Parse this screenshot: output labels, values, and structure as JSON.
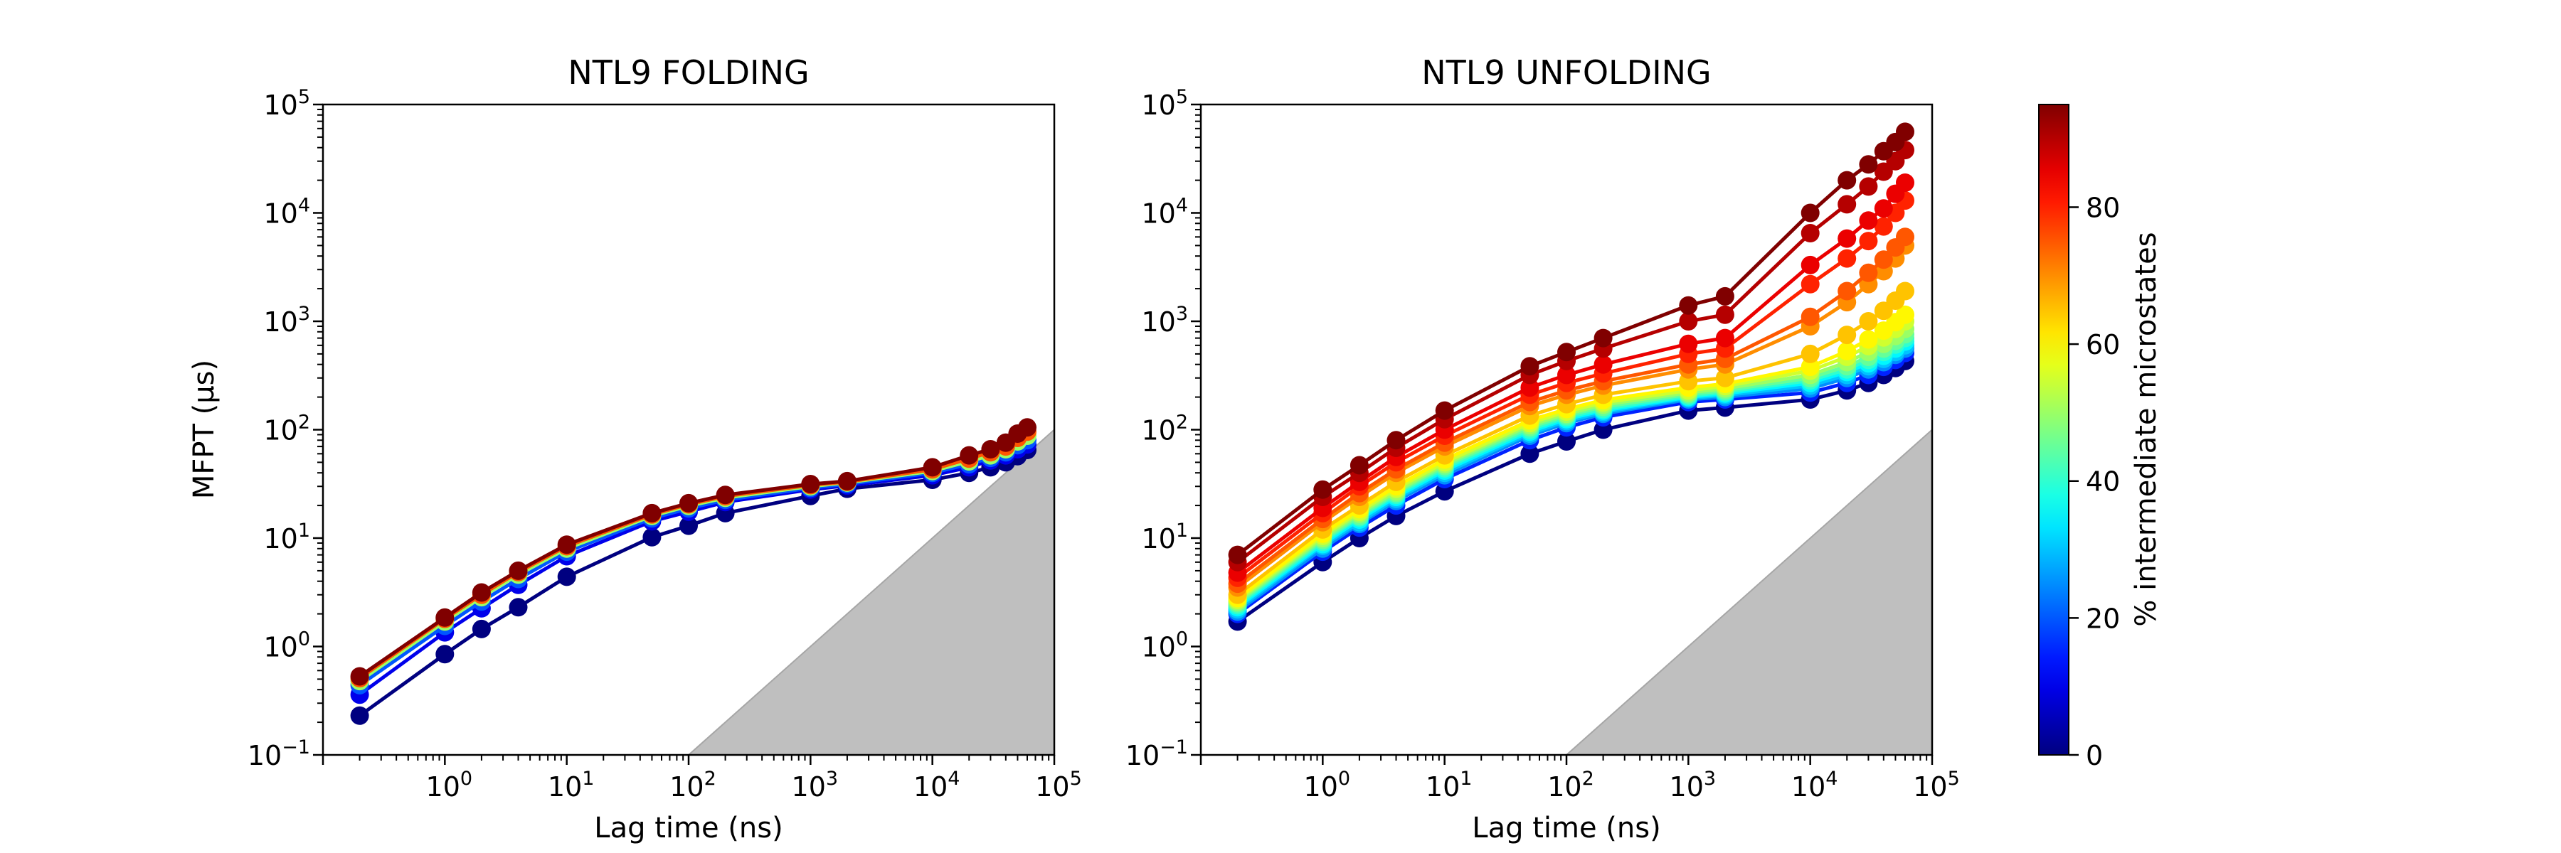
{
  "colors": {
    "shade": "#bfbfbf",
    "shade_edge": "#a6a6a6",
    "axes": "#000000"
  },
  "chart_data": [
    {
      "type": "line",
      "title": "NTL9 FOLDING",
      "xlabel": "Lag time (ns)",
      "ylabel": "MFPT (μs)",
      "xscale": "log",
      "yscale": "log",
      "xlim": [
        0.1,
        100000
      ],
      "ylim": [
        0.1,
        100000
      ],
      "x": [
        0.2,
        1,
        2,
        4,
        10,
        50,
        100,
        200,
        1000,
        2000,
        10000,
        20000,
        30000,
        40000,
        50000,
        60000
      ],
      "series_param_pct": [
        0,
        10,
        20,
        50,
        75,
        95
      ],
      "series": [
        {
          "values": [
            0.23,
            0.85,
            1.45,
            2.3,
            4.4,
            10.2,
            13.0,
            17.0,
            24.5,
            28.5,
            34.5,
            40.0,
            45.0,
            50.0,
            57.0,
            65.0
          ]
        },
        {
          "values": [
            0.36,
            1.35,
            2.25,
            3.7,
            6.8,
            14.3,
            17.5,
            21.5,
            28.0,
            30.5,
            38.0,
            45.0,
            52.0,
            58.0,
            66.0,
            73.0
          ]
        },
        {
          "values": [
            0.44,
            1.55,
            2.6,
            4.2,
            7.5,
            15.2,
            18.8,
            22.5,
            29.0,
            31.5,
            40.0,
            48.0,
            55.0,
            62.0,
            72.0,
            80.0
          ]
        },
        {
          "values": [
            0.48,
            1.7,
            2.85,
            4.6,
            8.0,
            16.0,
            19.8,
            23.5,
            30.0,
            32.5,
            41.5,
            51.0,
            58.0,
            66.0,
            78.0,
            88.0
          ]
        },
        {
          "values": [
            0.51,
            1.8,
            3.0,
            4.85,
            8.4,
            16.5,
            20.5,
            24.3,
            30.8,
            33.0,
            43.0,
            54.0,
            62.0,
            70.0,
            84.0,
            96.0
          ]
        },
        {
          "values": [
            0.53,
            1.85,
            3.15,
            5.0,
            8.7,
            17.0,
            21.0,
            25.0,
            31.5,
            33.5,
            45.0,
            58.0,
            66.0,
            76.0,
            92.0,
            105.0
          ]
        }
      ],
      "shaded_region": "MFPT < lag time"
    },
    {
      "type": "line",
      "title": "NTL9 UNFOLDING",
      "xlabel": "Lag time (ns)",
      "ylabel": "",
      "xscale": "log",
      "yscale": "log",
      "xlim": [
        0.1,
        100000
      ],
      "ylim": [
        0.1,
        100000
      ],
      "x": [
        0.2,
        1,
        2,
        4,
        10,
        50,
        100,
        200,
        1000,
        2000,
        10000,
        20000,
        30000,
        40000,
        50000,
        60000
      ],
      "series_param_pct": [
        0,
        15,
        25,
        30,
        35,
        40,
        45,
        50,
        55,
        60,
        65,
        70,
        75,
        80,
        85,
        90,
        95
      ],
      "series": [
        {
          "values": [
            1.7,
            6.0,
            10.0,
            16.0,
            27.0,
            60.0,
            78.0,
            100.0,
            150.0,
            160.0,
            190.0,
            230.0,
            270.0,
            320.0,
            370.0,
            430.0
          ]
        },
        {
          "values": [
            2.0,
            7.5,
            12.5,
            20.0,
            35.0,
            80.0,
            105.0,
            130.0,
            180.0,
            190.0,
            220.0,
            270.0,
            320.0,
            380.0,
            440.0,
            510.0
          ]
        },
        {
          "values": [
            2.1,
            8.0,
            13.5,
            22.0,
            38.0,
            88.0,
            115.0,
            140.0,
            190.0,
            200.0,
            240.0,
            300.0,
            360.0,
            420.0,
            490.0,
            560.0
          ]
        },
        {
          "values": [
            2.2,
            8.5,
            14.0,
            23.0,
            40.0,
            92.0,
            120.0,
            145.0,
            195.0,
            208.0,
            255.0,
            320.0,
            385.0,
            450.0,
            520.0,
            600.0
          ]
        },
        {
          "values": [
            2.3,
            8.8,
            14.8,
            24.0,
            42.0,
            96.0,
            125.0,
            150.0,
            200.0,
            215.0,
            270.0,
            340.0,
            410.0,
            480.0,
            560.0,
            650.0
          ]
        },
        {
          "values": [
            2.4,
            9.2,
            15.5,
            25.0,
            44.0,
            100.0,
            130.0,
            155.0,
            205.0,
            222.0,
            285.0,
            360.0,
            440.0,
            520.0,
            610.0,
            700.0
          ]
        },
        {
          "values": [
            2.5,
            9.6,
            16.0,
            26.0,
            46.0,
            105.0,
            135.0,
            162.0,
            212.0,
            230.0,
            300.0,
            385.0,
            470.0,
            560.0,
            660.0,
            760.0
          ]
        },
        {
          "values": [
            2.6,
            10.0,
            16.8,
            27.0,
            48.0,
            110.0,
            140.0,
            170.0,
            220.0,
            240.0,
            320.0,
            420.0,
            520.0,
            620.0,
            730.0,
            850.0
          ]
        },
        {
          "values": [
            2.7,
            10.5,
            17.5,
            28.5,
            50.0,
            115.0,
            147.0,
            178.0,
            230.0,
            252.0,
            350.0,
            470.0,
            590.0,
            710.0,
            850.0,
            1000.0
          ]
        },
        {
          "values": [
            2.8,
            11.0,
            18.5,
            30.0,
            53.0,
            122.0,
            155.0,
            188.0,
            245.0,
            265.0,
            380.0,
            530.0,
            680.0,
            820.0,
            980.0,
            1150.0
          ]
        },
        {
          "values": [
            3.0,
            12.0,
            20.0,
            33.0,
            58.0,
            135.0,
            172.0,
            210.0,
            280.0,
            300.0,
            500.0,
            750.0,
            1000.0,
            1250.0,
            1550.0,
            1900.0
          ]
        },
        {
          "values": [
            3.5,
            14.0,
            24.0,
            40.0,
            70.0,
            165.0,
            210.0,
            255.0,
            360.0,
            400.0,
            900.0,
            1500.0,
            2200.0,
            2900.0,
            3800.0,
            5000.0
          ]
        },
        {
          "values": [
            3.8,
            15.0,
            26.0,
            43.0,
            76.0,
            180.0,
            230.0,
            280.0,
            400.0,
            450.0,
            1100.0,
            1900.0,
            2800.0,
            3700.0,
            4800.0,
            6000.0
          ]
        },
        {
          "values": [
            4.3,
            17.0,
            30.0,
            50.0,
            88.0,
            210.0,
            270.0,
            330.0,
            500.0,
            560.0,
            2200.0,
            3800.0,
            5500.0,
            7500.0,
            10000.0,
            13000.0
          ]
        },
        {
          "values": [
            4.8,
            19.0,
            33.0,
            56.0,
            100.0,
            245.0,
            320.0,
            400.0,
            620.0,
            700.0,
            3300.0,
            5800.0,
            8500.0,
            11000.0,
            15000.0,
            19000.0
          ]
        },
        {
          "values": [
            6.0,
            24.0,
            40.0,
            68.0,
            125.0,
            320.0,
            430.0,
            560.0,
            1000.0,
            1150.0,
            6500.0,
            12000.0,
            17500.0,
            24000.0,
            30000.0,
            38000.0
          ]
        },
        {
          "values": [
            7.0,
            28.0,
            47.0,
            80.0,
            150.0,
            385.0,
            520.0,
            700.0,
            1400.0,
            1700.0,
            10000.0,
            20000.0,
            28000.0,
            37000.0,
            45000.0,
            56000.0
          ]
        }
      ],
      "shaded_region": "MFPT < lag time"
    }
  ],
  "colorbar": {
    "label": "% intermediate microstates",
    "colormap": "jet",
    "range": [
      0,
      95
    ],
    "ticks": [
      0,
      20,
      40,
      60,
      80
    ]
  }
}
